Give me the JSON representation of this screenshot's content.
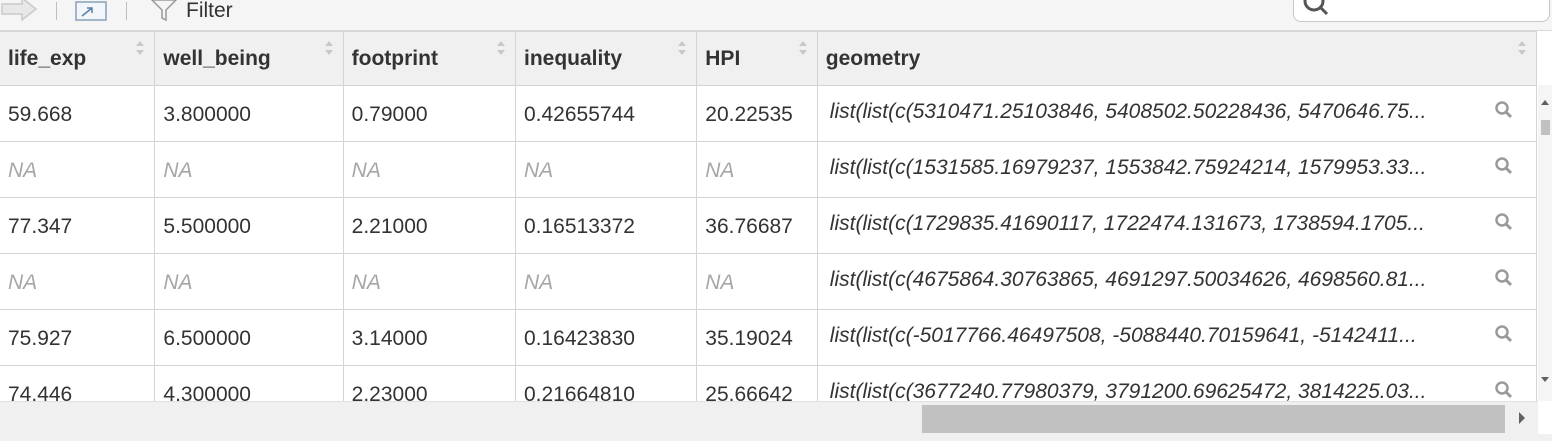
{
  "toolbar": {
    "filter_label": "Filter",
    "search_value": ""
  },
  "table": {
    "columns": [
      "life_exp",
      "well_being",
      "footprint",
      "inequality",
      "HPI",
      "geometry"
    ],
    "rows": [
      [
        "59.668",
        "3.800000",
        "0.79000",
        "0.42655744",
        "20.22535",
        "list(list(c(5310471.25103846, 5408502.50228436, 5470646.75..."
      ],
      [
        "NA",
        "NA",
        "NA",
        "NA",
        "NA",
        "list(list(c(1531585.16979237, 1553842.75924214, 1579953.33..."
      ],
      [
        "77.347",
        "5.500000",
        "2.21000",
        "0.16513372",
        "36.76687",
        "list(list(c(1729835.41690117, 1722474.131673, 1738594.1705..."
      ],
      [
        "NA",
        "NA",
        "NA",
        "NA",
        "NA",
        "list(list(c(4675864.30763865, 4691297.50034626, 4698560.81..."
      ],
      [
        "75.927",
        "6.500000",
        "3.14000",
        "0.16423830",
        "35.19024",
        "list(list(c(-5017766.46497508, -5088440.70159641, -5142411..."
      ],
      [
        "74.446",
        "4.300000",
        "2.23000",
        "0.21664810",
        "25.66642",
        "list(list(c(3677240.77980379, 3791200.69625472, 3814225.03..."
      ]
    ]
  },
  "icons": {
    "nav_forward": "arrow-right-icon",
    "popout": "popout-icon",
    "filter": "funnel-icon",
    "search": "magnifier-icon",
    "cell_view": "magnifier-icon",
    "sort": "sort-arrows-icon"
  },
  "colors": {
    "header_bg": "#f0f0f0",
    "na_text": "#a6a6a6",
    "grid_line": "#d4d4d4",
    "scroll_thumb": "#c1c1c1"
  }
}
